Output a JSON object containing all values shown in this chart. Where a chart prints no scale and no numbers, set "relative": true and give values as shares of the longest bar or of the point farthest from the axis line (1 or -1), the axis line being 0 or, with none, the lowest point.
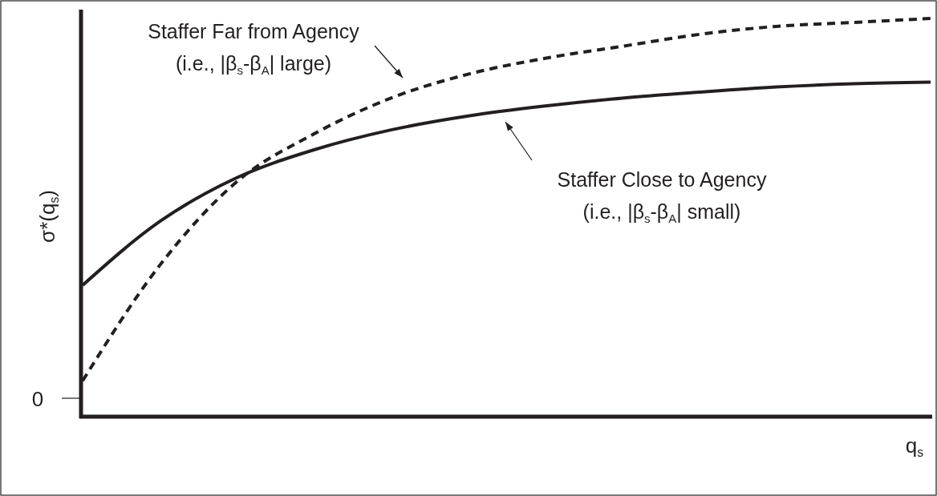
{
  "chart_data": {
    "type": "line",
    "relative": true,
    "xlabel": "q$_{s}$",
    "ylabel": "σ*(q$_{s}$)",
    "annotations": [
      "0",
      "Staffer Far from Agency\n(i.e., |β$_{s}$-β$_{A}$| large)",
      "Staffer Close to Agency\n(i.e., |β$_{s}$-β$_{A}$| small)"
    ],
    "categories": [
      null,
      null,
      null,
      null,
      null,
      null,
      null,
      null,
      null,
      null,
      null,
      null
    ],
    "series": [
      {
        "color": "#231f20",
        "line_style": "dashed",
        "values": [
          0.09,
          0.38,
          0.59,
          0.71,
          0.8,
          0.86,
          0.9,
          0.93,
          0.96,
          0.98,
          0.99,
          1
        ]
      },
      {
        "color": "#231f20",
        "line_style": "solid",
        "values": [
          0.33,
          0.49,
          0.6,
          0.67,
          0.72,
          0.755,
          0.78,
          0.8,
          0.815,
          0.828,
          0.836,
          0.84
        ]
      }
    ],
    "marker": "none"
  }
}
